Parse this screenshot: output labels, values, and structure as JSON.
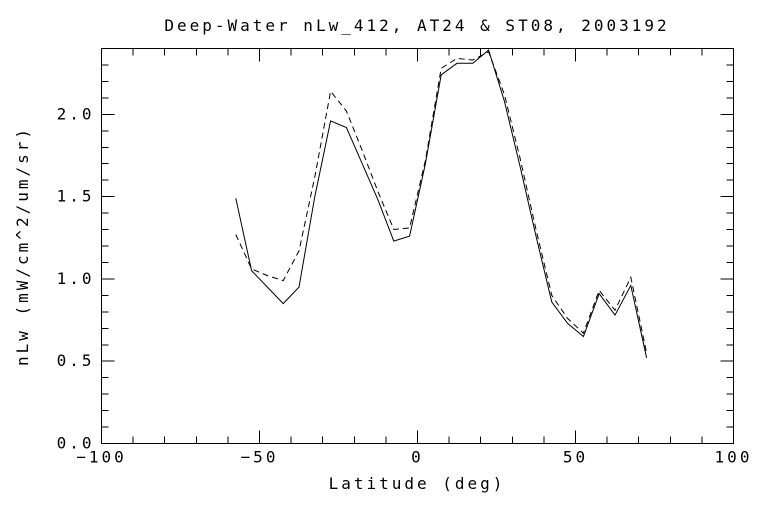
{
  "window": {
    "background_color": "#ffffff",
    "foreground_color": "#000000"
  },
  "chart_data": {
    "type": "line",
    "title": "Deep-Water nLw_412, AT24 & ST08, 2003192",
    "xlabel": "Latitude (deg)",
    "ylabel": "nLw (mW/cm^2/um/sr)",
    "xlim": [
      -100,
      100
    ],
    "ylim": [
      0,
      2.4
    ],
    "grid": false,
    "legend_position": "none",
    "x_major_ticks": [
      -100,
      -50,
      0,
      50,
      100
    ],
    "x_tick_labels": [
      "−100",
      "−50",
      "0",
      "50",
      "100"
    ],
    "x_minor_tick_step": 10,
    "y_major_ticks": [
      0.0,
      0.5,
      1.0,
      1.5,
      2.0
    ],
    "y_tick_labels": [
      "0.0",
      "0.5",
      "1.0",
      "1.5",
      "2.0"
    ],
    "y_minor_tick_step": 0.1,
    "x": [
      -57.5,
      -52.5,
      -47.5,
      -42.5,
      -37.5,
      -32.5,
      -27.5,
      -22.5,
      -17.5,
      -12.5,
      -7.5,
      -2.5,
      2.5,
      7.5,
      12.5,
      17.5,
      22.5,
      27.5,
      32.5,
      37.5,
      42.5,
      47.5,
      52.5,
      57.5,
      62.5,
      67.5,
      72.5
    ],
    "series": [
      {
        "name": "AT24",
        "style": "solid",
        "values": [
          1.49,
          1.05,
          0.95,
          0.85,
          0.95,
          1.5,
          1.96,
          1.92,
          1.7,
          1.48,
          1.23,
          1.26,
          1.7,
          2.24,
          2.31,
          2.31,
          2.39,
          2.08,
          1.68,
          1.26,
          0.86,
          0.73,
          0.65,
          0.91,
          0.78,
          0.96,
          0.52
        ]
      },
      {
        "name": "ST08",
        "style": "dashed",
        "values": [
          1.27,
          1.06,
          1.02,
          0.99,
          1.17,
          1.62,
          2.14,
          2.02,
          1.78,
          1.53,
          1.3,
          1.31,
          1.72,
          2.28,
          2.34,
          2.33,
          2.38,
          2.12,
          1.73,
          1.3,
          0.9,
          0.76,
          0.67,
          0.93,
          0.81,
          1.01,
          0.55
        ]
      }
    ]
  }
}
